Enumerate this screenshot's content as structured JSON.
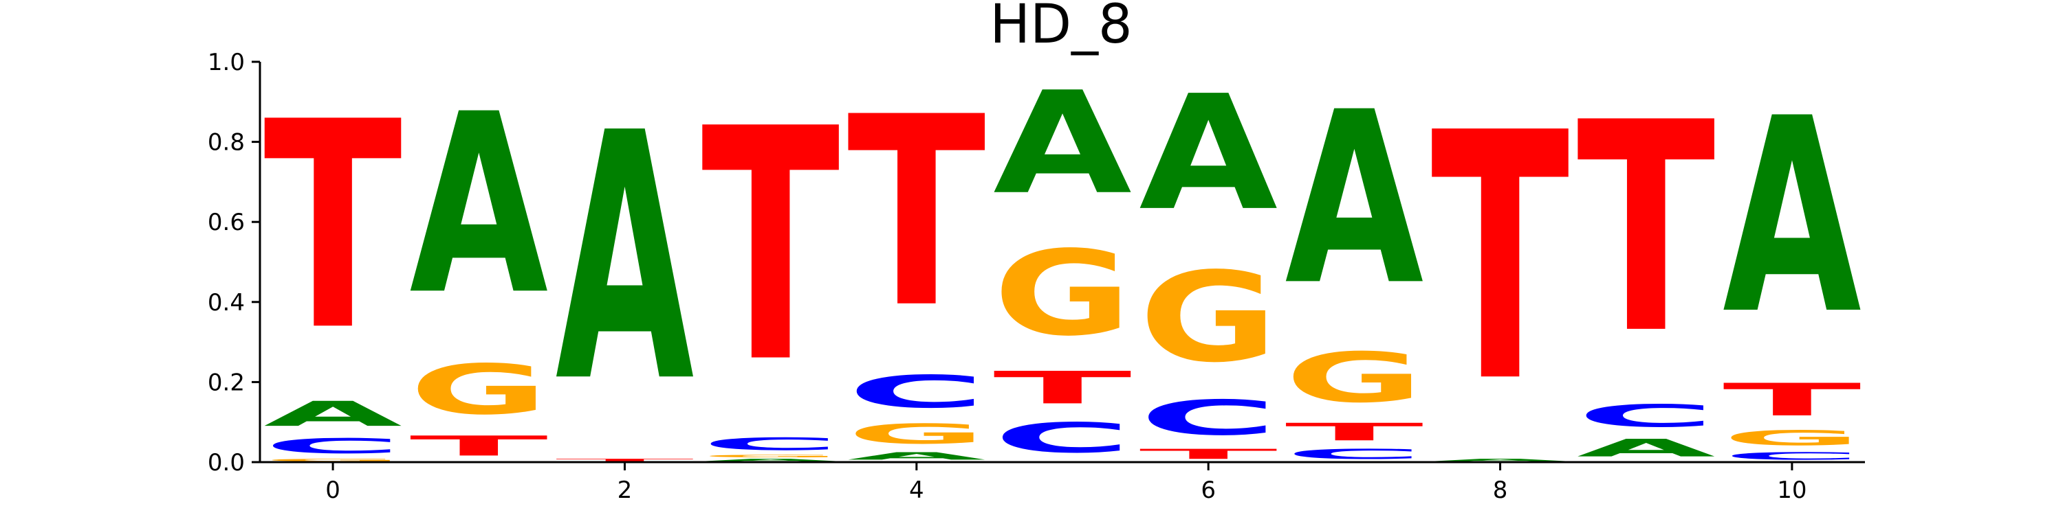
{
  "chart_data": {
    "type": "sequence-logo",
    "title": "HD_8",
    "xlabel": "",
    "ylabel": "",
    "x_ticks": [
      0,
      2,
      4,
      6,
      8,
      10
    ],
    "y_ticks": [
      "0.0",
      "0.2",
      "0.4",
      "0.6",
      "0.8",
      "1.0"
    ],
    "xlim": [
      -0.5,
      10.5
    ],
    "ylim": [
      0,
      1
    ],
    "grid": false,
    "colors": {
      "A": "#008000",
      "C": "#0000ff",
      "G": "#ffa500",
      "T": "#ff0000"
    },
    "positions": [
      {
        "x": 0,
        "stack": [
          [
            "G",
            0.01
          ],
          [
            "C",
            0.06
          ],
          [
            "A",
            0.1
          ],
          [
            "T",
            0.83
          ]
        ]
      },
      {
        "x": 1,
        "stack": [
          [
            "A",
            0.0
          ],
          [
            "C",
            0.0
          ],
          [
            "T",
            0.08
          ],
          [
            "G",
            0.2
          ],
          [
            "A",
            0.72
          ]
        ]
      },
      {
        "x": 2,
        "stack": [
          [
            "C",
            0.0
          ],
          [
            "G",
            0.0
          ],
          [
            "T",
            0.01
          ],
          [
            "A",
            0.99
          ]
        ]
      },
      {
        "x": 3,
        "stack": [
          [
            "A",
            0.01
          ],
          [
            "G",
            0.01
          ],
          [
            "C",
            0.05
          ],
          [
            "T",
            0.93
          ]
        ]
      },
      {
        "x": 4,
        "stack": [
          [
            "A",
            0.03
          ],
          [
            "G",
            0.08
          ],
          [
            "C",
            0.13
          ],
          [
            "T",
            0.76
          ]
        ]
      },
      {
        "x": 5,
        "stack": [
          [
            "C",
            0.12
          ],
          [
            "T",
            0.13
          ],
          [
            "G",
            0.34
          ],
          [
            "A",
            0.41
          ]
        ]
      },
      {
        "x": 6,
        "stack": [
          [
            "T",
            0.04
          ],
          [
            "C",
            0.14
          ],
          [
            "G",
            0.36
          ],
          [
            "A",
            0.46
          ]
        ]
      },
      {
        "x": 7,
        "stack": [
          [
            "C",
            0.04
          ],
          [
            "T",
            0.07
          ],
          [
            "G",
            0.2
          ],
          [
            "A",
            0.69
          ]
        ]
      },
      {
        "x": 8,
        "stack": [
          [
            "A",
            0.01
          ],
          [
            "T",
            0.99
          ]
        ]
      },
      {
        "x": 9,
        "stack": [
          [
            "A",
            0.07
          ],
          [
            "C",
            0.09
          ],
          [
            "T",
            0.84
          ]
        ]
      },
      {
        "x": 10,
        "stack": [
          [
            "C",
            0.03
          ],
          [
            "G",
            0.06
          ],
          [
            "T",
            0.13
          ],
          [
            "A",
            0.78
          ]
        ]
      }
    ]
  }
}
